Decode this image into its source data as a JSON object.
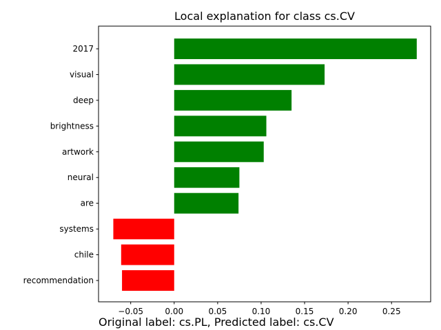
{
  "chart_data": {
    "type": "bar",
    "orientation": "horizontal",
    "title": "Local explanation for class cs.CV",
    "categories": [
      "2017",
      "visual",
      "deep",
      "brightness",
      "artwork",
      "neural",
      "are",
      "systems",
      "chile",
      "recommendation"
    ],
    "values": [
      0.279,
      0.173,
      0.135,
      0.106,
      0.103,
      0.075,
      0.074,
      -0.07,
      -0.061,
      -0.06
    ],
    "xlim": [
      -0.087,
      0.295
    ],
    "xticks": [
      -0.05,
      0.0,
      0.05,
      0.1,
      0.15,
      0.2,
      0.25
    ],
    "xtick_labels": [
      "−0.05",
      "0.00",
      "0.05",
      "0.10",
      "0.15",
      "0.20",
      "0.25"
    ],
    "xlabel": "",
    "ylabel": "",
    "grid": false,
    "colors": {
      "positive": "#008000",
      "negative": "#ff0000"
    }
  },
  "caption": "Original label: cs.PL, Predicted label: cs.CV"
}
